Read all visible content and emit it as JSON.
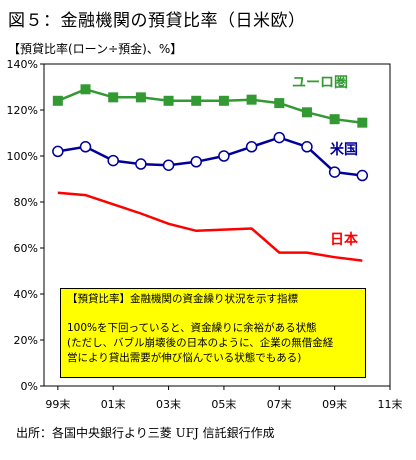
{
  "figure_title": "図５：金融機関の預貸比率（日米欧）",
  "unit_label": "【預貸比率(ローン÷預金)、%】",
  "source": "出所：各国中央銀行より三菱 UFJ 信託銀行作成",
  "note": {
    "heading": "【預貸比率】金融機関の資金繰り状況を示す指標",
    "line1": "100%を下回っていると、資金繰りに余裕がある状態",
    "line2": "(ただし、バブル崩壊後の日本のように、企業の無借金経",
    "line3": "営により貸出需要が伸び悩んでいる状態でもある)"
  },
  "chart_data": {
    "type": "line",
    "x": [
      1999,
      2000,
      2001,
      2002,
      2003,
      2004,
      2005,
      2006,
      2007,
      2008,
      2009,
      2010
    ],
    "x_ticks": [
      1999,
      2001,
      2003,
      2005,
      2007,
      2009,
      2011
    ],
    "x_tick_labels": [
      "99末",
      "01末",
      "03末",
      "05末",
      "07末",
      "09末",
      "11末"
    ],
    "xlim": [
      1998.5,
      2011
    ],
    "ylim": [
      0,
      140
    ],
    "y_ticks": [
      0,
      20,
      40,
      60,
      80,
      100,
      120,
      140
    ],
    "y_tick_labels": [
      "0%",
      "20%",
      "40%",
      "60%",
      "80%",
      "100%",
      "120%",
      "140%"
    ],
    "grid": false,
    "series": [
      {
        "name": "ユーロ圏",
        "color": "#339933",
        "marker": "square",
        "x": [
          1999,
          2000,
          2001,
          2002,
          2003,
          2004,
          2005,
          2006,
          2007,
          2008,
          2009,
          2010
        ],
        "values": [
          124,
          129,
          125.5,
          125.5,
          124,
          124,
          124,
          124.5,
          123,
          119,
          116,
          114.5
        ]
      },
      {
        "name": "米国",
        "color": "#000099",
        "marker": "circle",
        "x": [
          1999,
          2000,
          2001,
          2002,
          2003,
          2004,
          2005,
          2006,
          2007,
          2008,
          2009,
          2010
        ],
        "values": [
          102,
          104,
          98,
          96.5,
          96,
          97.5,
          100,
          104,
          108,
          104,
          93,
          91.5
        ]
      },
      {
        "name": "日本",
        "color": "#ff0000",
        "marker": "none",
        "x": [
          1999,
          2000,
          2001,
          2002,
          2003,
          2004,
          2005,
          2006,
          2007,
          2008,
          2009,
          2010
        ],
        "values": [
          84,
          83,
          79,
          75,
          70.5,
          67.5,
          68,
          68.5,
          58,
          58,
          56,
          54.5
        ]
      }
    ]
  }
}
